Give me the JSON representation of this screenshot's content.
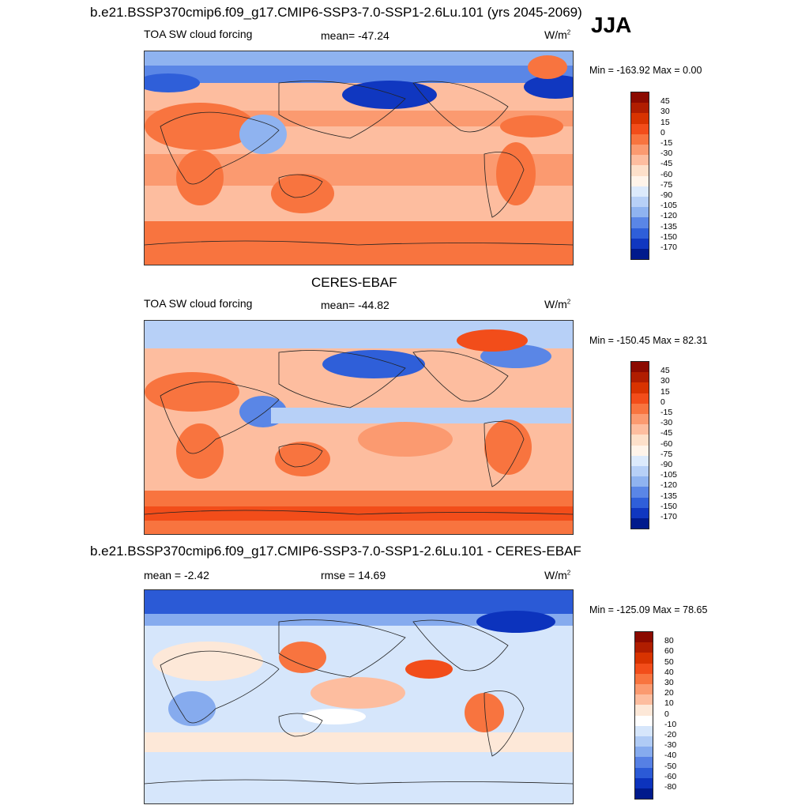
{
  "season": "JJA",
  "panels": [
    {
      "id": "model",
      "title": "b.e21.BSSP370cmip6.f09_g17.CMIP6-SSP3-7.0-SSP1-2.6Lu.101 (yrs 2045-2069)",
      "left_label": "TOA SW cloud forcing",
      "center_label": "mean= -47.24",
      "units": "W/m",
      "units_sup": "2",
      "minmax": "Min = -163.92 Max =   0.00",
      "colorbar": {
        "labels": [
          "45",
          "30",
          "15",
          "0",
          "-15",
          "-30",
          "-45",
          "-60",
          "-75",
          "-90",
          "-105",
          "-120",
          "-135",
          "-150",
          "-170"
        ],
        "colors": [
          "#8b0a00",
          "#b01d00",
          "#d83300",
          "#f24d1a",
          "#f8743f",
          "#fb9a70",
          "#fdbd9f",
          "#fde0ca",
          "#fff4ea",
          "#dceafc",
          "#b7d0f7",
          "#8fb3f0",
          "#5a86e6",
          "#2f5fd9",
          "#1037c0",
          "#001a8c"
        ]
      }
    },
    {
      "id": "obs",
      "title": "CERES-EBAF",
      "left_label": "TOA SW cloud forcing",
      "center_label": "mean= -44.82",
      "units": "W/m",
      "units_sup": "2",
      "minmax": "Min = -150.45 Max =  82.31",
      "colorbar": {
        "labels": [
          "45",
          "30",
          "15",
          "0",
          "-15",
          "-30",
          "-45",
          "-60",
          "-75",
          "-90",
          "-105",
          "-120",
          "-135",
          "-150",
          "-170"
        ],
        "colors": [
          "#8b0a00",
          "#b01d00",
          "#d83300",
          "#f24d1a",
          "#f8743f",
          "#fb9a70",
          "#fdbd9f",
          "#fde0ca",
          "#fff4ea",
          "#dceafc",
          "#b7d0f7",
          "#8fb3f0",
          "#5a86e6",
          "#2f5fd9",
          "#1037c0",
          "#001a8c"
        ]
      }
    },
    {
      "id": "diff",
      "title": "b.e21.BSSP370cmip6.f09_g17.CMIP6-SSP3-7.0-SSP1-2.6Lu.101 - CERES-EBAF",
      "left_label": "mean =  -2.42",
      "center_label": "rmse =  14.69",
      "units": "W/m",
      "units_sup": "2",
      "minmax": "Min = -125.09 Max =  78.65",
      "colorbar": {
        "labels": [
          "80",
          "60",
          "50",
          "40",
          "30",
          "20",
          "10",
          "0",
          "-10",
          "-20",
          "-30",
          "-40",
          "-50",
          "-60",
          "-80"
        ],
        "colors": [
          "#8b0a00",
          "#b01d00",
          "#d83300",
          "#f24d1a",
          "#f8743f",
          "#fb9a70",
          "#fdbd9f",
          "#fde8d8",
          "#ffffff",
          "#d6e6fb",
          "#b0cbf5",
          "#86abee",
          "#5680e4",
          "#2b5ad6",
          "#0c33bd",
          "#001a8c"
        ]
      }
    }
  ]
}
